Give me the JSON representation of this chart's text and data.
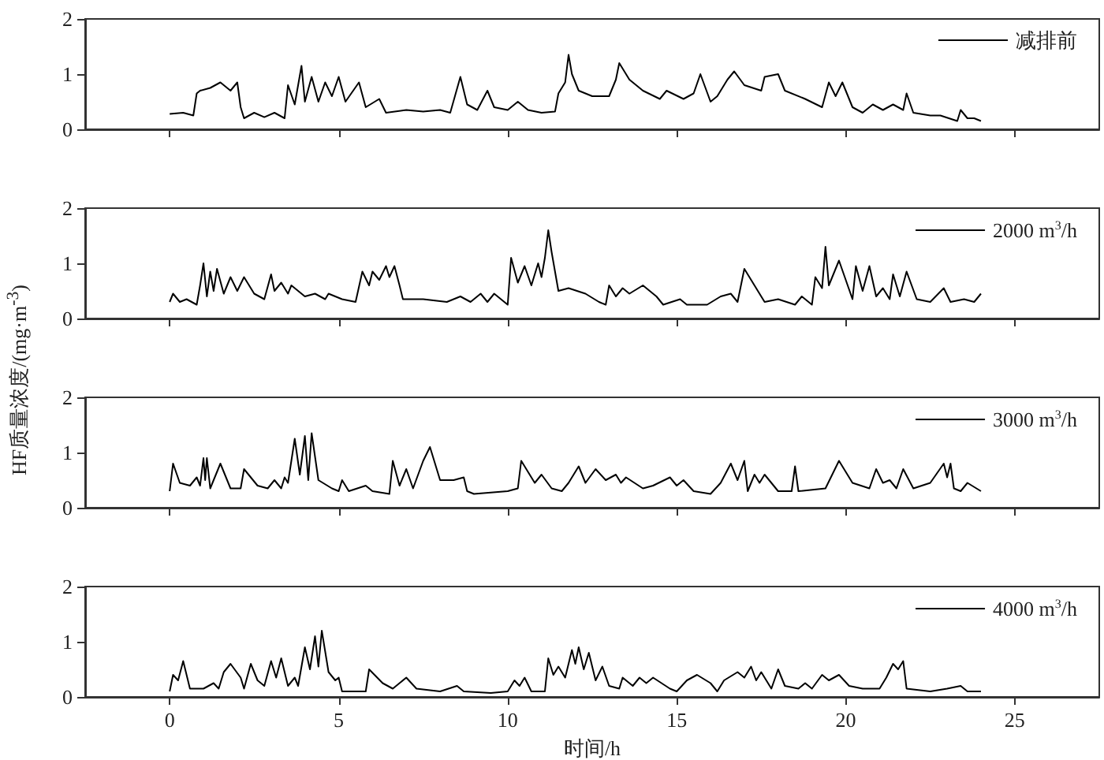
{
  "chart_data": [
    {
      "type": "line",
      "x": [
        0,
        0.4,
        0.7,
        0.8,
        0.9,
        1.2,
        1.5,
        1.8,
        2.0,
        2.1,
        2.2,
        2.5,
        2.8,
        3.1,
        3.4,
        3.5,
        3.7,
        3.9,
        4.0,
        4.2,
        4.4,
        4.6,
        4.8,
        5.0,
        5.2,
        5.6,
        5.8,
        6.2,
        6.4,
        7.0,
        7.5,
        8.0,
        8.3,
        8.6,
        8.8,
        9.1,
        9.4,
        9.6,
        10.0,
        10.3,
        10.6,
        11.0,
        11.4,
        11.5,
        11.7,
        11.8,
        11.9,
        12.1,
        12.5,
        13.0,
        13.2,
        13.3,
        13.6,
        14.0,
        14.5,
        14.7,
        15.2,
        15.5,
        15.7,
        16.0,
        16.2,
        16.5,
        16.7,
        17.0,
        17.5,
        17.6,
        18.0,
        18.2,
        18.8,
        19.3,
        19.5,
        19.7,
        19.9,
        20.2,
        20.5,
        20.8,
        21.1,
        21.4,
        21.7,
        21.8,
        22.0,
        22.5,
        22.8,
        23.3,
        23.4,
        23.6,
        23.8,
        24
      ],
      "series": [
        {
          "name": "减排前",
          "color": "#000000",
          "values": [
            0.28,
            0.3,
            0.25,
            0.65,
            0.7,
            0.75,
            0.85,
            0.7,
            0.85,
            0.4,
            0.2,
            0.3,
            0.22,
            0.3,
            0.2,
            0.8,
            0.45,
            1.15,
            0.5,
            0.95,
            0.5,
            0.85,
            0.6,
            0.95,
            0.5,
            0.85,
            0.4,
            0.55,
            0.3,
            0.35,
            0.32,
            0.35,
            0.3,
            0.95,
            0.45,
            0.35,
            0.7,
            0.4,
            0.35,
            0.5,
            0.35,
            0.3,
            0.32,
            0.65,
            0.85,
            1.35,
            1.0,
            0.7,
            0.6,
            0.6,
            0.9,
            1.2,
            0.9,
            0.7,
            0.55,
            0.7,
            0.55,
            0.65,
            1.0,
            0.5,
            0.6,
            0.9,
            1.05,
            0.8,
            0.7,
            0.95,
            1.0,
            0.7,
            0.55,
            0.4,
            0.85,
            0.6,
            0.85,
            0.4,
            0.3,
            0.45,
            0.35,
            0.45,
            0.35,
            0.65,
            0.3,
            0.25,
            0.25,
            0.15,
            0.35,
            0.2,
            0.2,
            0.15
          ]
        }
      ],
      "xlim": [
        -2.5,
        27.5
      ],
      "xticks": [
        0,
        5,
        10,
        15,
        20,
        25
      ],
      "ylim": [
        0,
        2
      ],
      "yticks": [
        0,
        1,
        2
      ],
      "legend": "top right",
      "tick_labels": "y"
    },
    {
      "type": "line",
      "x": [
        0,
        0.1,
        0.3,
        0.5,
        0.8,
        0.9,
        1.0,
        1.1,
        1.2,
        1.3,
        1.4,
        1.6,
        1.8,
        2.0,
        2.2,
        2.5,
        2.8,
        3.0,
        3.1,
        3.3,
        3.5,
        3.6,
        4.0,
        4.3,
        4.6,
        4.7,
        5.1,
        5.5,
        5.7,
        5.9,
        6.0,
        6.2,
        6.4,
        6.5,
        6.65,
        6.8,
        6.9,
        7.5,
        8.2,
        8.6,
        8.9,
        9.2,
        9.4,
        9.6,
        10.0,
        10.1,
        10.3,
        10.5,
        10.7,
        10.9,
        11.0,
        11.1,
        11.2,
        11.3,
        11.5,
        11.8,
        12.3,
        12.7,
        12.9,
        13.0,
        13.2,
        13.4,
        13.6,
        14.0,
        14.4,
        14.6,
        15.1,
        15.3,
        15.9,
        16.3,
        16.6,
        16.8,
        17.0,
        17.4,
        17.6,
        18.0,
        18.5,
        18.7,
        19.0,
        19.1,
        19.3,
        19.4,
        19.5,
        19.8,
        20.2,
        20.3,
        20.5,
        20.7,
        20.9,
        21.1,
        21.3,
        21.4,
        21.6,
        21.8,
        22.1,
        22.5,
        22.9,
        23.1,
        23.5,
        23.8,
        24
      ],
      "series": [
        {
          "name": "2000 m$^{3}$/h",
          "color": "#000000",
          "values": [
            0.3,
            0.45,
            0.3,
            0.35,
            0.25,
            0.6,
            1.0,
            0.4,
            0.85,
            0.5,
            0.9,
            0.45,
            0.75,
            0.5,
            0.75,
            0.45,
            0.35,
            0.8,
            0.5,
            0.65,
            0.45,
            0.6,
            0.4,
            0.45,
            0.35,
            0.45,
            0.35,
            0.3,
            0.85,
            0.6,
            0.85,
            0.7,
            0.95,
            0.75,
            0.95,
            0.6,
            0.35,
            0.35,
            0.3,
            0.4,
            0.3,
            0.45,
            0.3,
            0.45,
            0.25,
            1.1,
            0.65,
            0.95,
            0.6,
            1.0,
            0.75,
            1.1,
            1.6,
            1.2,
            0.5,
            0.55,
            0.45,
            0.3,
            0.25,
            0.6,
            0.4,
            0.55,
            0.45,
            0.6,
            0.4,
            0.25,
            0.35,
            0.25,
            0.25,
            0.4,
            0.45,
            0.3,
            0.9,
            0.5,
            0.3,
            0.35,
            0.25,
            0.4,
            0.25,
            0.75,
            0.55,
            1.3,
            0.6,
            1.05,
            0.35,
            0.95,
            0.5,
            0.95,
            0.4,
            0.55,
            0.35,
            0.8,
            0.4,
            0.85,
            0.35,
            0.3,
            0.55,
            0.3,
            0.35,
            0.3,
            0.45
          ]
        }
      ],
      "xlim": [
        -2.5,
        27.5
      ],
      "xticks": [
        0,
        5,
        10,
        15,
        20,
        25
      ],
      "ylim": [
        0,
        2
      ],
      "yticks": [
        0,
        1,
        2
      ],
      "legend": "top right",
      "tick_labels": "y",
      "ylabel": "HF质量浓度/(mg·m$^{-3}$)"
    },
    {
      "type": "line",
      "x": [
        0,
        0.1,
        0.3,
        0.6,
        0.8,
        0.9,
        1.0,
        1.05,
        1.1,
        1.2,
        1.5,
        1.8,
        2.1,
        2.2,
        2.6,
        2.9,
        3.1,
        3.3,
        3.4,
        3.5,
        3.7,
        3.85,
        4.0,
        4.1,
        4.2,
        4.4,
        4.8,
        5.0,
        5.1,
        5.3,
        5.8,
        6.0,
        6.5,
        6.6,
        6.8,
        7.0,
        7.2,
        7.5,
        7.7,
        8.0,
        8.4,
        8.7,
        8.8,
        9.0,
        10.0,
        10.3,
        10.4,
        10.8,
        11.0,
        11.3,
        11.6,
        11.8,
        12.1,
        12.3,
        12.6,
        12.9,
        13.2,
        13.35,
        13.5,
        14.0,
        14.3,
        14.8,
        15.0,
        15.2,
        15.5,
        16.0,
        16.3,
        16.6,
        16.8,
        17.0,
        17.1,
        17.3,
        17.45,
        17.6,
        18.0,
        18.4,
        18.5,
        18.6,
        19.4,
        19.8,
        20.2,
        20.7,
        20.9,
        21.1,
        21.3,
        21.5,
        21.7,
        22.0,
        22.5,
        22.9,
        23.0,
        23.1,
        23.2,
        23.4,
        23.6,
        24
      ],
      "series": [
        {
          "name": "3000 m$^{3}$/h",
          "color": "#000000",
          "values": [
            0.3,
            0.8,
            0.45,
            0.4,
            0.55,
            0.4,
            0.9,
            0.5,
            0.9,
            0.35,
            0.8,
            0.35,
            0.35,
            0.7,
            0.4,
            0.35,
            0.5,
            0.35,
            0.55,
            0.45,
            1.25,
            0.6,
            1.3,
            0.5,
            1.35,
            0.5,
            0.35,
            0.3,
            0.5,
            0.3,
            0.4,
            0.3,
            0.25,
            0.85,
            0.4,
            0.7,
            0.35,
            0.85,
            1.1,
            0.5,
            0.5,
            0.55,
            0.3,
            0.25,
            0.3,
            0.35,
            0.85,
            0.45,
            0.6,
            0.35,
            0.3,
            0.45,
            0.75,
            0.45,
            0.7,
            0.5,
            0.6,
            0.45,
            0.55,
            0.35,
            0.4,
            0.55,
            0.4,
            0.5,
            0.3,
            0.25,
            0.45,
            0.8,
            0.5,
            0.85,
            0.3,
            0.6,
            0.45,
            0.6,
            0.3,
            0.3,
            0.75,
            0.3,
            0.35,
            0.85,
            0.45,
            0.35,
            0.7,
            0.45,
            0.5,
            0.35,
            0.7,
            0.35,
            0.45,
            0.8,
            0.55,
            0.8,
            0.35,
            0.3,
            0.45,
            0.3
          ]
        }
      ],
      "xlim": [
        -2.5,
        27.5
      ],
      "xticks": [
        0,
        5,
        10,
        15,
        20,
        25
      ],
      "ylim": [
        0,
        2
      ],
      "yticks": [
        0,
        1,
        2
      ],
      "legend": "top right",
      "tick_labels": "y"
    },
    {
      "type": "line",
      "x": [
        0,
        0.1,
        0.25,
        0.4,
        0.6,
        1.0,
        1.3,
        1.45,
        1.6,
        1.8,
        2.1,
        2.2,
        2.4,
        2.6,
        2.8,
        3.0,
        3.15,
        3.3,
        3.5,
        3.7,
        3.8,
        4.0,
        4.15,
        4.3,
        4.4,
        4.5,
        4.7,
        4.9,
        5.0,
        5.1,
        5.8,
        5.9,
        6.3,
        6.6,
        7.0,
        7.3,
        8.0,
        8.5,
        8.7,
        9.5,
        10.0,
        10.2,
        10.35,
        10.5,
        10.7,
        11.1,
        11.2,
        11.35,
        11.5,
        11.7,
        11.9,
        12.0,
        12.1,
        12.25,
        12.4,
        12.6,
        12.8,
        13.0,
        13.3,
        13.4,
        13.7,
        13.9,
        14.1,
        14.3,
        14.8,
        15.0,
        15.3,
        15.6,
        16.0,
        16.2,
        16.4,
        16.8,
        17.0,
        17.2,
        17.35,
        17.5,
        17.8,
        18.0,
        18.2,
        18.6,
        18.8,
        19.0,
        19.3,
        19.5,
        19.8,
        20.1,
        20.5,
        21.0,
        21.2,
        21.4,
        21.55,
        21.7,
        21.8,
        22.5,
        23.0,
        23.4,
        23.6,
        24
      ],
      "series": [
        {
          "name": "4000 m$^{3}$/h",
          "color": "#000000",
          "values": [
            0.1,
            0.4,
            0.3,
            0.65,
            0.15,
            0.15,
            0.25,
            0.15,
            0.45,
            0.6,
            0.35,
            0.15,
            0.6,
            0.3,
            0.2,
            0.65,
            0.35,
            0.7,
            0.2,
            0.35,
            0.2,
            0.9,
            0.5,
            1.1,
            0.55,
            1.2,
            0.45,
            0.3,
            0.35,
            0.1,
            0.1,
            0.5,
            0.25,
            0.15,
            0.35,
            0.15,
            0.1,
            0.2,
            0.1,
            0.07,
            0.1,
            0.3,
            0.2,
            0.35,
            0.1,
            0.1,
            0.7,
            0.4,
            0.55,
            0.35,
            0.85,
            0.6,
            0.9,
            0.5,
            0.8,
            0.3,
            0.55,
            0.2,
            0.15,
            0.35,
            0.2,
            0.35,
            0.25,
            0.35,
            0.15,
            0.1,
            0.3,
            0.4,
            0.25,
            0.1,
            0.3,
            0.45,
            0.35,
            0.55,
            0.3,
            0.45,
            0.15,
            0.5,
            0.2,
            0.15,
            0.25,
            0.15,
            0.4,
            0.3,
            0.4,
            0.2,
            0.15,
            0.15,
            0.35,
            0.6,
            0.5,
            0.65,
            0.15,
            0.1,
            0.15,
            0.2,
            0.1,
            0.1
          ]
        }
      ],
      "xlim": [
        -2.5,
        27.5
      ],
      "xticks": [
        0,
        5,
        10,
        15,
        20,
        25
      ],
      "ylim": [
        0,
        2
      ],
      "yticks": [
        0,
        1,
        2
      ],
      "legend": "top right",
      "xlabel": "时间/h"
    }
  ]
}
